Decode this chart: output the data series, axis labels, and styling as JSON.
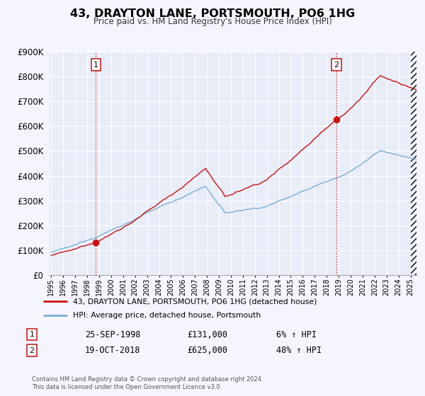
{
  "title": "43, DRAYTON LANE, PORTSMOUTH, PO6 1HG",
  "subtitle": "Price paid vs. HM Land Registry's House Price Index (HPI)",
  "xlim": [
    1994.8,
    2025.5
  ],
  "ylim": [
    0,
    900000
  ],
  "yticks": [
    0,
    100000,
    200000,
    300000,
    400000,
    500000,
    600000,
    700000,
    800000,
    900000
  ],
  "ytick_labels": [
    "£0",
    "£100K",
    "£200K",
    "£300K",
    "£400K",
    "£500K",
    "£600K",
    "£700K",
    "£800K",
    "£900K"
  ],
  "xtick_years": [
    1995,
    1996,
    1997,
    1998,
    1999,
    2000,
    2001,
    2002,
    2003,
    2004,
    2005,
    2006,
    2007,
    2008,
    2009,
    2010,
    2011,
    2012,
    2013,
    2014,
    2015,
    2016,
    2017,
    2018,
    2019,
    2020,
    2021,
    2022,
    2023,
    2024,
    2025
  ],
  "transaction1": {
    "date": 1998.73,
    "price": 131000,
    "label": "1",
    "text_date": "25-SEP-1998",
    "text_price": "£131,000",
    "text_hpi": "6% ↑ HPI"
  },
  "transaction2": {
    "date": 2018.8,
    "price": 625000,
    "label": "2",
    "text_date": "19-OCT-2018",
    "text_price": "£625,000",
    "text_hpi": "48% ↑ HPI"
  },
  "hpi_color": "#7bafd4",
  "price_color": "#cc1111",
  "background_color": "#f5f5ff",
  "plot_bg_color": "#e8edf8",
  "grid_color": "#ffffff",
  "vline_color": "#cc2222",
  "marker_color": "#cc1111",
  "legend1_label": "43, DRAYTON LANE, PORTSMOUTH, PO6 1HG (detached house)",
  "legend2_label": "HPI: Average price, detached house, Portsmouth",
  "footer1": "Contains HM Land Registry data © Crown copyright and database right 2024.",
  "footer2": "This data is licensed under the Open Government Licence v3.0."
}
